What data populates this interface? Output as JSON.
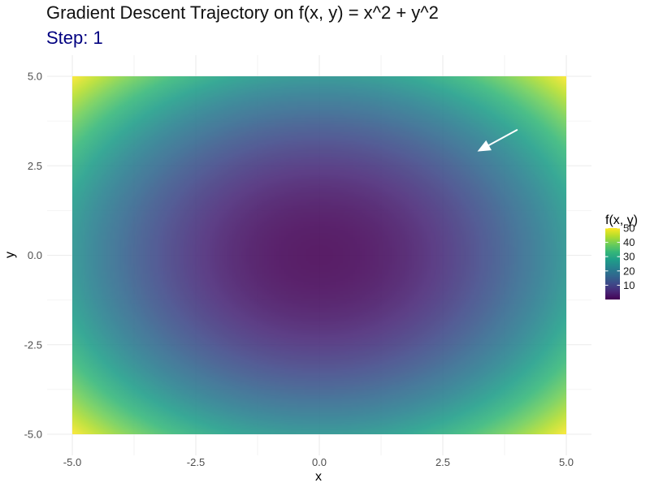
{
  "chart_data": {
    "type": "heatmap",
    "title": "Gradient Descent Trajectory on f(x, y) = x^2 + y^2",
    "subtitle": "Step: 1",
    "xlabel": "x",
    "ylabel": "y",
    "xlim": [
      -5,
      5
    ],
    "ylim": [
      -5,
      5
    ],
    "x_ticks": [
      -5.0,
      -2.5,
      0.0,
      2.5,
      5.0
    ],
    "x_tick_labels": [
      "-5.0",
      "-2.5",
      "0.0",
      "2.5",
      "5.0"
    ],
    "y_ticks": [
      -5.0,
      -2.5,
      0.0,
      2.5,
      5.0
    ],
    "y_tick_labels": [
      "-5.0",
      "-2.5",
      "0.0",
      "2.5",
      "5.0"
    ],
    "function": "x^2 + y^2",
    "fill_range": [
      0,
      50
    ],
    "colormap": "viridis",
    "legend": {
      "title": "f(x, y)",
      "placement": "right",
      "breaks": [
        10,
        20,
        30,
        40,
        50
      ],
      "labels": [
        "10",
        "20",
        "30",
        "40",
        "50"
      ]
    },
    "arrows": [
      {
        "x_start": 4.0,
        "y_start": 3.5,
        "x_end": 3.2,
        "y_end": 2.9,
        "color": "#ffffff"
      }
    ],
    "grid": true,
    "theme": "minimal"
  }
}
